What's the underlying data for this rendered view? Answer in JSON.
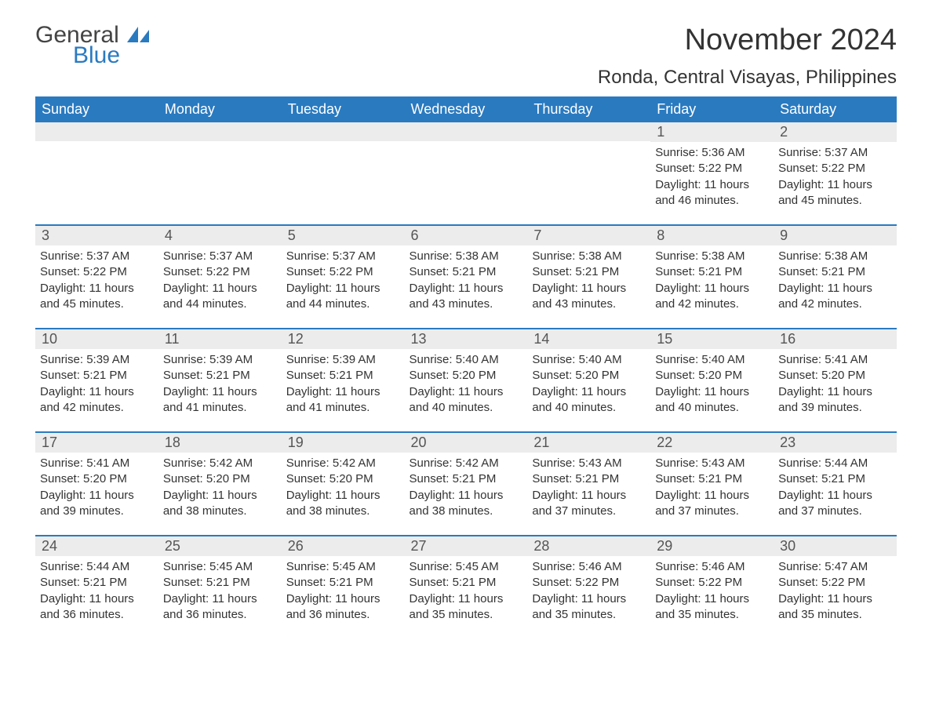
{
  "logo": {
    "word1": "General",
    "word2": "Blue",
    "icon_color": "#2a7ac0"
  },
  "title": "November 2024",
  "location": "Ronda, Central Visayas, Philippines",
  "colors": {
    "header_bg": "#2a7ac0",
    "header_text": "#ffffff",
    "daynum_bg": "#ececec",
    "daynum_border": "#2a7ac0",
    "body_text": "#333333"
  },
  "day_headers": [
    "Sunday",
    "Monday",
    "Tuesday",
    "Wednesday",
    "Thursday",
    "Friday",
    "Saturday"
  ],
  "weeks": [
    [
      null,
      null,
      null,
      null,
      null,
      {
        "n": "1",
        "sunrise": "5:36 AM",
        "sunset": "5:22 PM",
        "daylight": "11 hours and 46 minutes."
      },
      {
        "n": "2",
        "sunrise": "5:37 AM",
        "sunset": "5:22 PM",
        "daylight": "11 hours and 45 minutes."
      }
    ],
    [
      {
        "n": "3",
        "sunrise": "5:37 AM",
        "sunset": "5:22 PM",
        "daylight": "11 hours and 45 minutes."
      },
      {
        "n": "4",
        "sunrise": "5:37 AM",
        "sunset": "5:22 PM",
        "daylight": "11 hours and 44 minutes."
      },
      {
        "n": "5",
        "sunrise": "5:37 AM",
        "sunset": "5:22 PM",
        "daylight": "11 hours and 44 minutes."
      },
      {
        "n": "6",
        "sunrise": "5:38 AM",
        "sunset": "5:21 PM",
        "daylight": "11 hours and 43 minutes."
      },
      {
        "n": "7",
        "sunrise": "5:38 AM",
        "sunset": "5:21 PM",
        "daylight": "11 hours and 43 minutes."
      },
      {
        "n": "8",
        "sunrise": "5:38 AM",
        "sunset": "5:21 PM",
        "daylight": "11 hours and 42 minutes."
      },
      {
        "n": "9",
        "sunrise": "5:38 AM",
        "sunset": "5:21 PM",
        "daylight": "11 hours and 42 minutes."
      }
    ],
    [
      {
        "n": "10",
        "sunrise": "5:39 AM",
        "sunset": "5:21 PM",
        "daylight": "11 hours and 42 minutes."
      },
      {
        "n": "11",
        "sunrise": "5:39 AM",
        "sunset": "5:21 PM",
        "daylight": "11 hours and 41 minutes."
      },
      {
        "n": "12",
        "sunrise": "5:39 AM",
        "sunset": "5:21 PM",
        "daylight": "11 hours and 41 minutes."
      },
      {
        "n": "13",
        "sunrise": "5:40 AM",
        "sunset": "5:20 PM",
        "daylight": "11 hours and 40 minutes."
      },
      {
        "n": "14",
        "sunrise": "5:40 AM",
        "sunset": "5:20 PM",
        "daylight": "11 hours and 40 minutes."
      },
      {
        "n": "15",
        "sunrise": "5:40 AM",
        "sunset": "5:20 PM",
        "daylight": "11 hours and 40 minutes."
      },
      {
        "n": "16",
        "sunrise": "5:41 AM",
        "sunset": "5:20 PM",
        "daylight": "11 hours and 39 minutes."
      }
    ],
    [
      {
        "n": "17",
        "sunrise": "5:41 AM",
        "sunset": "5:20 PM",
        "daylight": "11 hours and 39 minutes."
      },
      {
        "n": "18",
        "sunrise": "5:42 AM",
        "sunset": "5:20 PM",
        "daylight": "11 hours and 38 minutes."
      },
      {
        "n": "19",
        "sunrise": "5:42 AM",
        "sunset": "5:20 PM",
        "daylight": "11 hours and 38 minutes."
      },
      {
        "n": "20",
        "sunrise": "5:42 AM",
        "sunset": "5:21 PM",
        "daylight": "11 hours and 38 minutes."
      },
      {
        "n": "21",
        "sunrise": "5:43 AM",
        "sunset": "5:21 PM",
        "daylight": "11 hours and 37 minutes."
      },
      {
        "n": "22",
        "sunrise": "5:43 AM",
        "sunset": "5:21 PM",
        "daylight": "11 hours and 37 minutes."
      },
      {
        "n": "23",
        "sunrise": "5:44 AM",
        "sunset": "5:21 PM",
        "daylight": "11 hours and 37 minutes."
      }
    ],
    [
      {
        "n": "24",
        "sunrise": "5:44 AM",
        "sunset": "5:21 PM",
        "daylight": "11 hours and 36 minutes."
      },
      {
        "n": "25",
        "sunrise": "5:45 AM",
        "sunset": "5:21 PM",
        "daylight": "11 hours and 36 minutes."
      },
      {
        "n": "26",
        "sunrise": "5:45 AM",
        "sunset": "5:21 PM",
        "daylight": "11 hours and 36 minutes."
      },
      {
        "n": "27",
        "sunrise": "5:45 AM",
        "sunset": "5:21 PM",
        "daylight": "11 hours and 35 minutes."
      },
      {
        "n": "28",
        "sunrise": "5:46 AM",
        "sunset": "5:22 PM",
        "daylight": "11 hours and 35 minutes."
      },
      {
        "n": "29",
        "sunrise": "5:46 AM",
        "sunset": "5:22 PM",
        "daylight": "11 hours and 35 minutes."
      },
      {
        "n": "30",
        "sunrise": "5:47 AM",
        "sunset": "5:22 PM",
        "daylight": "11 hours and 35 minutes."
      }
    ]
  ],
  "labels": {
    "sunrise": "Sunrise: ",
    "sunset": "Sunset: ",
    "daylight": "Daylight: "
  }
}
